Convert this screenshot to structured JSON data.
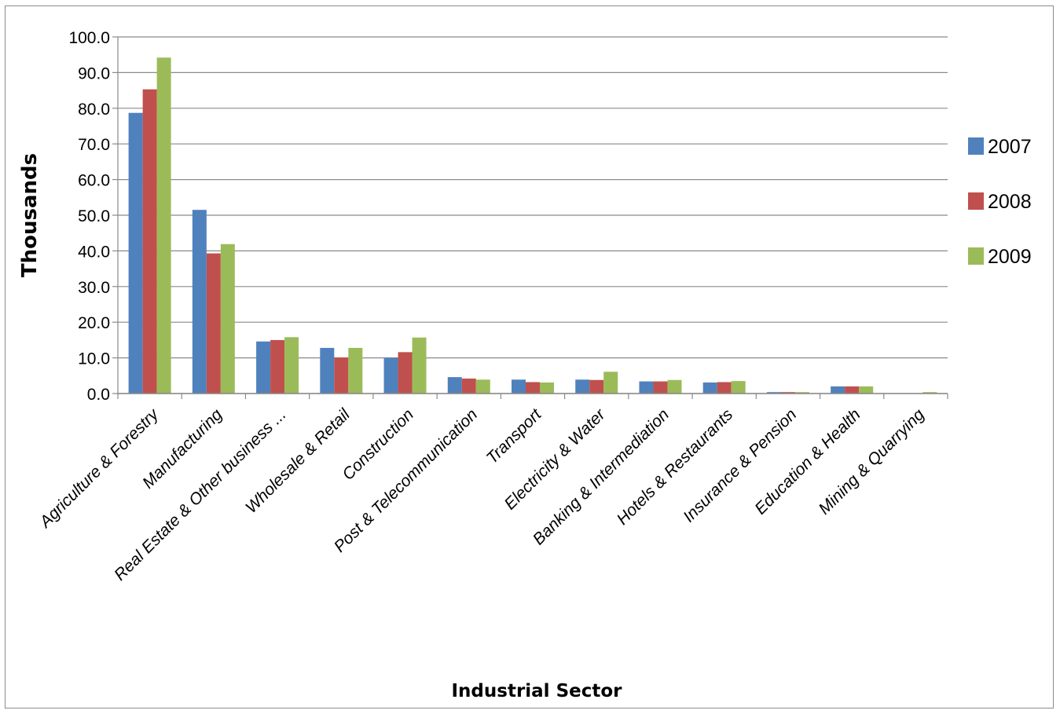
{
  "chart_data": {
    "type": "bar",
    "title": "",
    "xlabel": "Industrial Sector",
    "ylabel": "Thousands",
    "ylim": [
      0,
      100
    ],
    "ytick_step": 10,
    "ytick_labels": [
      "0.0",
      "10.0",
      "20.0",
      "30.0",
      "40.0",
      "50.0",
      "60.0",
      "70.0",
      "80.0",
      "90.0",
      "100.0"
    ],
    "grid": true,
    "legend_position": "right",
    "categories": [
      "Agriculture & Forestry",
      "Manufacturing",
      "Real Estate & Other business ...",
      "Wholesale & Retail",
      "Construction",
      "Post & Telecommunication",
      "Transport",
      "Electricity & Water",
      "Banking & Intermediation",
      "Hotels & Restaurants",
      "Insurance & Pension",
      "Education & Health",
      "Mining & Quarrying"
    ],
    "series": [
      {
        "name": "2007",
        "color": "#4f81bd",
        "values": [
          78.7,
          51.5,
          14.6,
          12.8,
          10.0,
          4.6,
          3.9,
          3.9,
          3.4,
          3.1,
          0.4,
          2.0,
          0.0
        ]
      },
      {
        "name": "2008",
        "color": "#c0504d",
        "values": [
          85.3,
          39.3,
          15.0,
          10.1,
          11.6,
          4.2,
          3.2,
          3.8,
          3.4,
          3.2,
          0.4,
          2.0,
          0.0
        ]
      },
      {
        "name": "2009",
        "color": "#9bbb59",
        "values": [
          94.2,
          41.9,
          15.8,
          12.8,
          15.7,
          3.9,
          3.1,
          6.1,
          3.8,
          3.5,
          0.4,
          2.0,
          0.4
        ]
      }
    ]
  }
}
